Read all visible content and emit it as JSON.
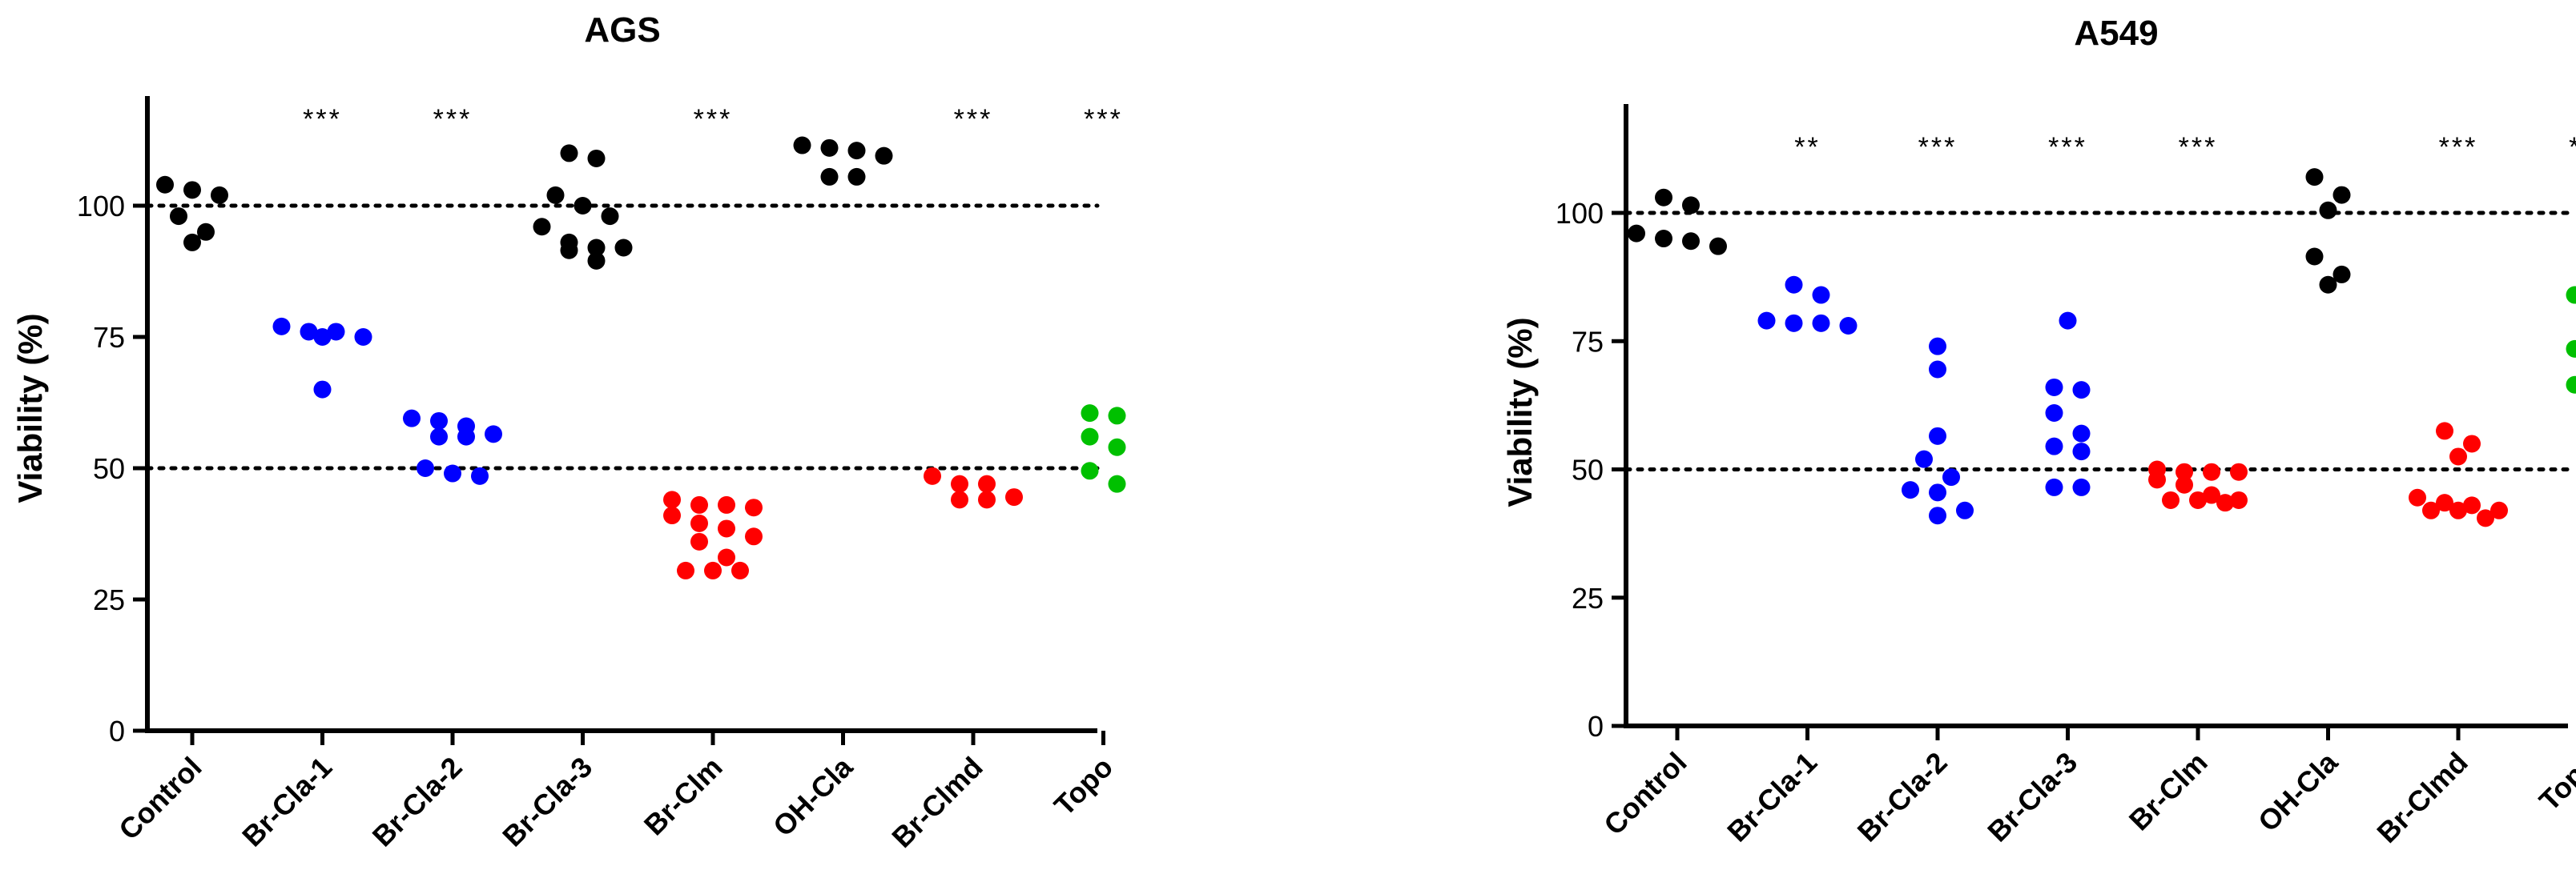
{
  "chart_data": [
    {
      "type": "scatter",
      "title": "AGS",
      "ylabel": "Viability (%)",
      "xlabel": "",
      "ylim": [
        0,
        120
      ],
      "yticks": [
        0,
        25,
        50,
        75,
        100
      ],
      "reference_lines": [
        100,
        50
      ],
      "categories": [
        "Control",
        "Br-Cla-1",
        "Br-Cla-2",
        "Br-Cla-3",
        "Br-Clm",
        "OH-Cla",
        "Br-Clmd",
        "Topo"
      ],
      "significance": [
        "",
        "***",
        "***",
        "",
        "***",
        "",
        "***",
        "***"
      ],
      "colors": [
        "#000000",
        "#0000ff",
        "#0000ff",
        "#000000",
        "#ff0000",
        "#000000",
        "#ff0000",
        "#00c000"
      ],
      "points": [
        [
          104,
          102,
          103,
          98,
          95,
          93
        ],
        [
          76,
          77,
          75,
          75,
          76,
          65
        ],
        [
          58,
          56,
          59,
          59.5,
          56,
          56.5,
          48.5,
          50,
          49
        ],
        [
          110,
          109,
          102,
          100,
          98,
          96,
          93,
          92,
          92,
          91.5,
          89.5
        ],
        [
          43,
          43,
          42.5,
          44,
          41,
          39.5,
          38.5,
          37,
          36,
          33,
          30.5,
          30.5,
          30.5
        ],
        [
          111,
          109.5,
          110.5,
          111.5,
          105.5,
          105.5
        ],
        [
          48.5,
          47,
          47,
          44,
          44.5,
          44
        ],
        [
          60,
          60.5,
          54,
          56,
          49.5,
          47
        ]
      ]
    },
    {
      "type": "scatter",
      "title": "A549",
      "ylabel": "Viability (%)",
      "xlabel": "",
      "ylim": [
        0,
        120
      ],
      "yticks": [
        0,
        25,
        50,
        75,
        100
      ],
      "reference_lines": [
        100,
        50
      ],
      "categories": [
        "Control",
        "Br-Cla-1",
        "Br-Cla-2",
        "Br-Cla-3",
        "Br-Clm",
        "OH-Cla",
        "Br-Clmd",
        "Topo"
      ],
      "significance": [
        "",
        "**",
        "***",
        "***",
        "***",
        "",
        "***",
        "***"
      ],
      "colors": [
        "#000000",
        "#0000ff",
        "#0000ff",
        "#0000ff",
        "#ff0000",
        "#000000",
        "#ff0000",
        "#00c000"
      ],
      "points": [
        [
          93.5,
          96,
          101.5,
          103,
          94.5,
          95
        ],
        [
          78,
          84,
          86,
          79,
          78.5,
          78.5
        ],
        [
          74,
          69.5,
          56.5,
          52,
          48.5,
          45.5,
          46,
          42,
          41
        ],
        [
          79,
          66,
          65.5,
          61,
          57,
          54.5,
          53.5,
          46.5,
          46.5
        ],
        [
          49.5,
          49.5,
          48,
          47,
          49.5,
          50,
          44,
          45,
          43.5,
          44,
          44
        ],
        [
          107,
          103.5,
          100.5,
          91.5,
          88,
          86
        ],
        [
          57.5,
          55,
          52.5,
          43.5,
          43,
          42,
          42,
          42,
          44.5,
          40.5
        ],
        [
          84,
          84,
          71.5,
          73.5,
          66.5,
          66.5
        ]
      ]
    }
  ]
}
